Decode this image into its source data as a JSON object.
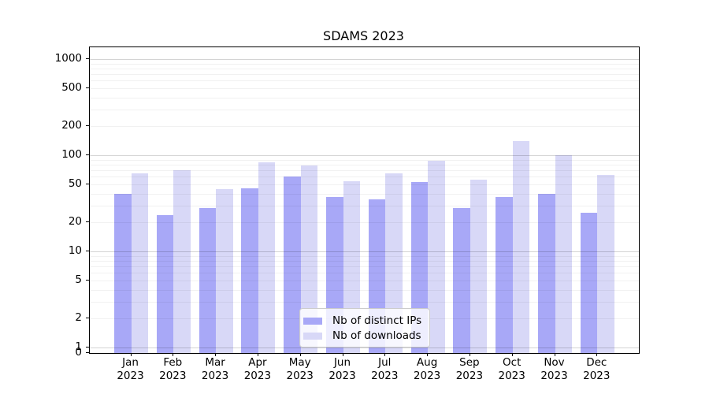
{
  "chart_data": {
    "type": "bar",
    "title": "SDAMS 2023",
    "yscale": "symlog",
    "grid": true,
    "legend_position": "lower center",
    "ylim": [
      0,
      1300
    ],
    "yticks": [
      0,
      1,
      2,
      5,
      10,
      20,
      50,
      100,
      200,
      500,
      1000
    ],
    "categories": [
      {
        "month": "Jan",
        "year": "2023"
      },
      {
        "month": "Feb",
        "year": "2023"
      },
      {
        "month": "Mar",
        "year": "2023"
      },
      {
        "month": "Apr",
        "year": "2023"
      },
      {
        "month": "May",
        "year": "2023"
      },
      {
        "month": "Jun",
        "year": "2023"
      },
      {
        "month": "Jul",
        "year": "2023"
      },
      {
        "month": "Aug",
        "year": "2023"
      },
      {
        "month": "Sep",
        "year": "2023"
      },
      {
        "month": "Oct",
        "year": "2023"
      },
      {
        "month": "Nov",
        "year": "2023"
      },
      {
        "month": "Dec",
        "year": "2023"
      }
    ],
    "series": [
      {
        "name": "Nb of distinct IPs",
        "color": "#a8a8f7",
        "values": [
          40,
          24,
          28,
          45,
          60,
          37,
          35,
          53,
          28,
          37,
          40,
          25
        ]
      },
      {
        "name": "Nb of downloads",
        "color": "#d8d8f7",
        "values": [
          65,
          70,
          44,
          85,
          78,
          54,
          65,
          88,
          56,
          140,
          100,
          62
        ]
      }
    ]
  }
}
